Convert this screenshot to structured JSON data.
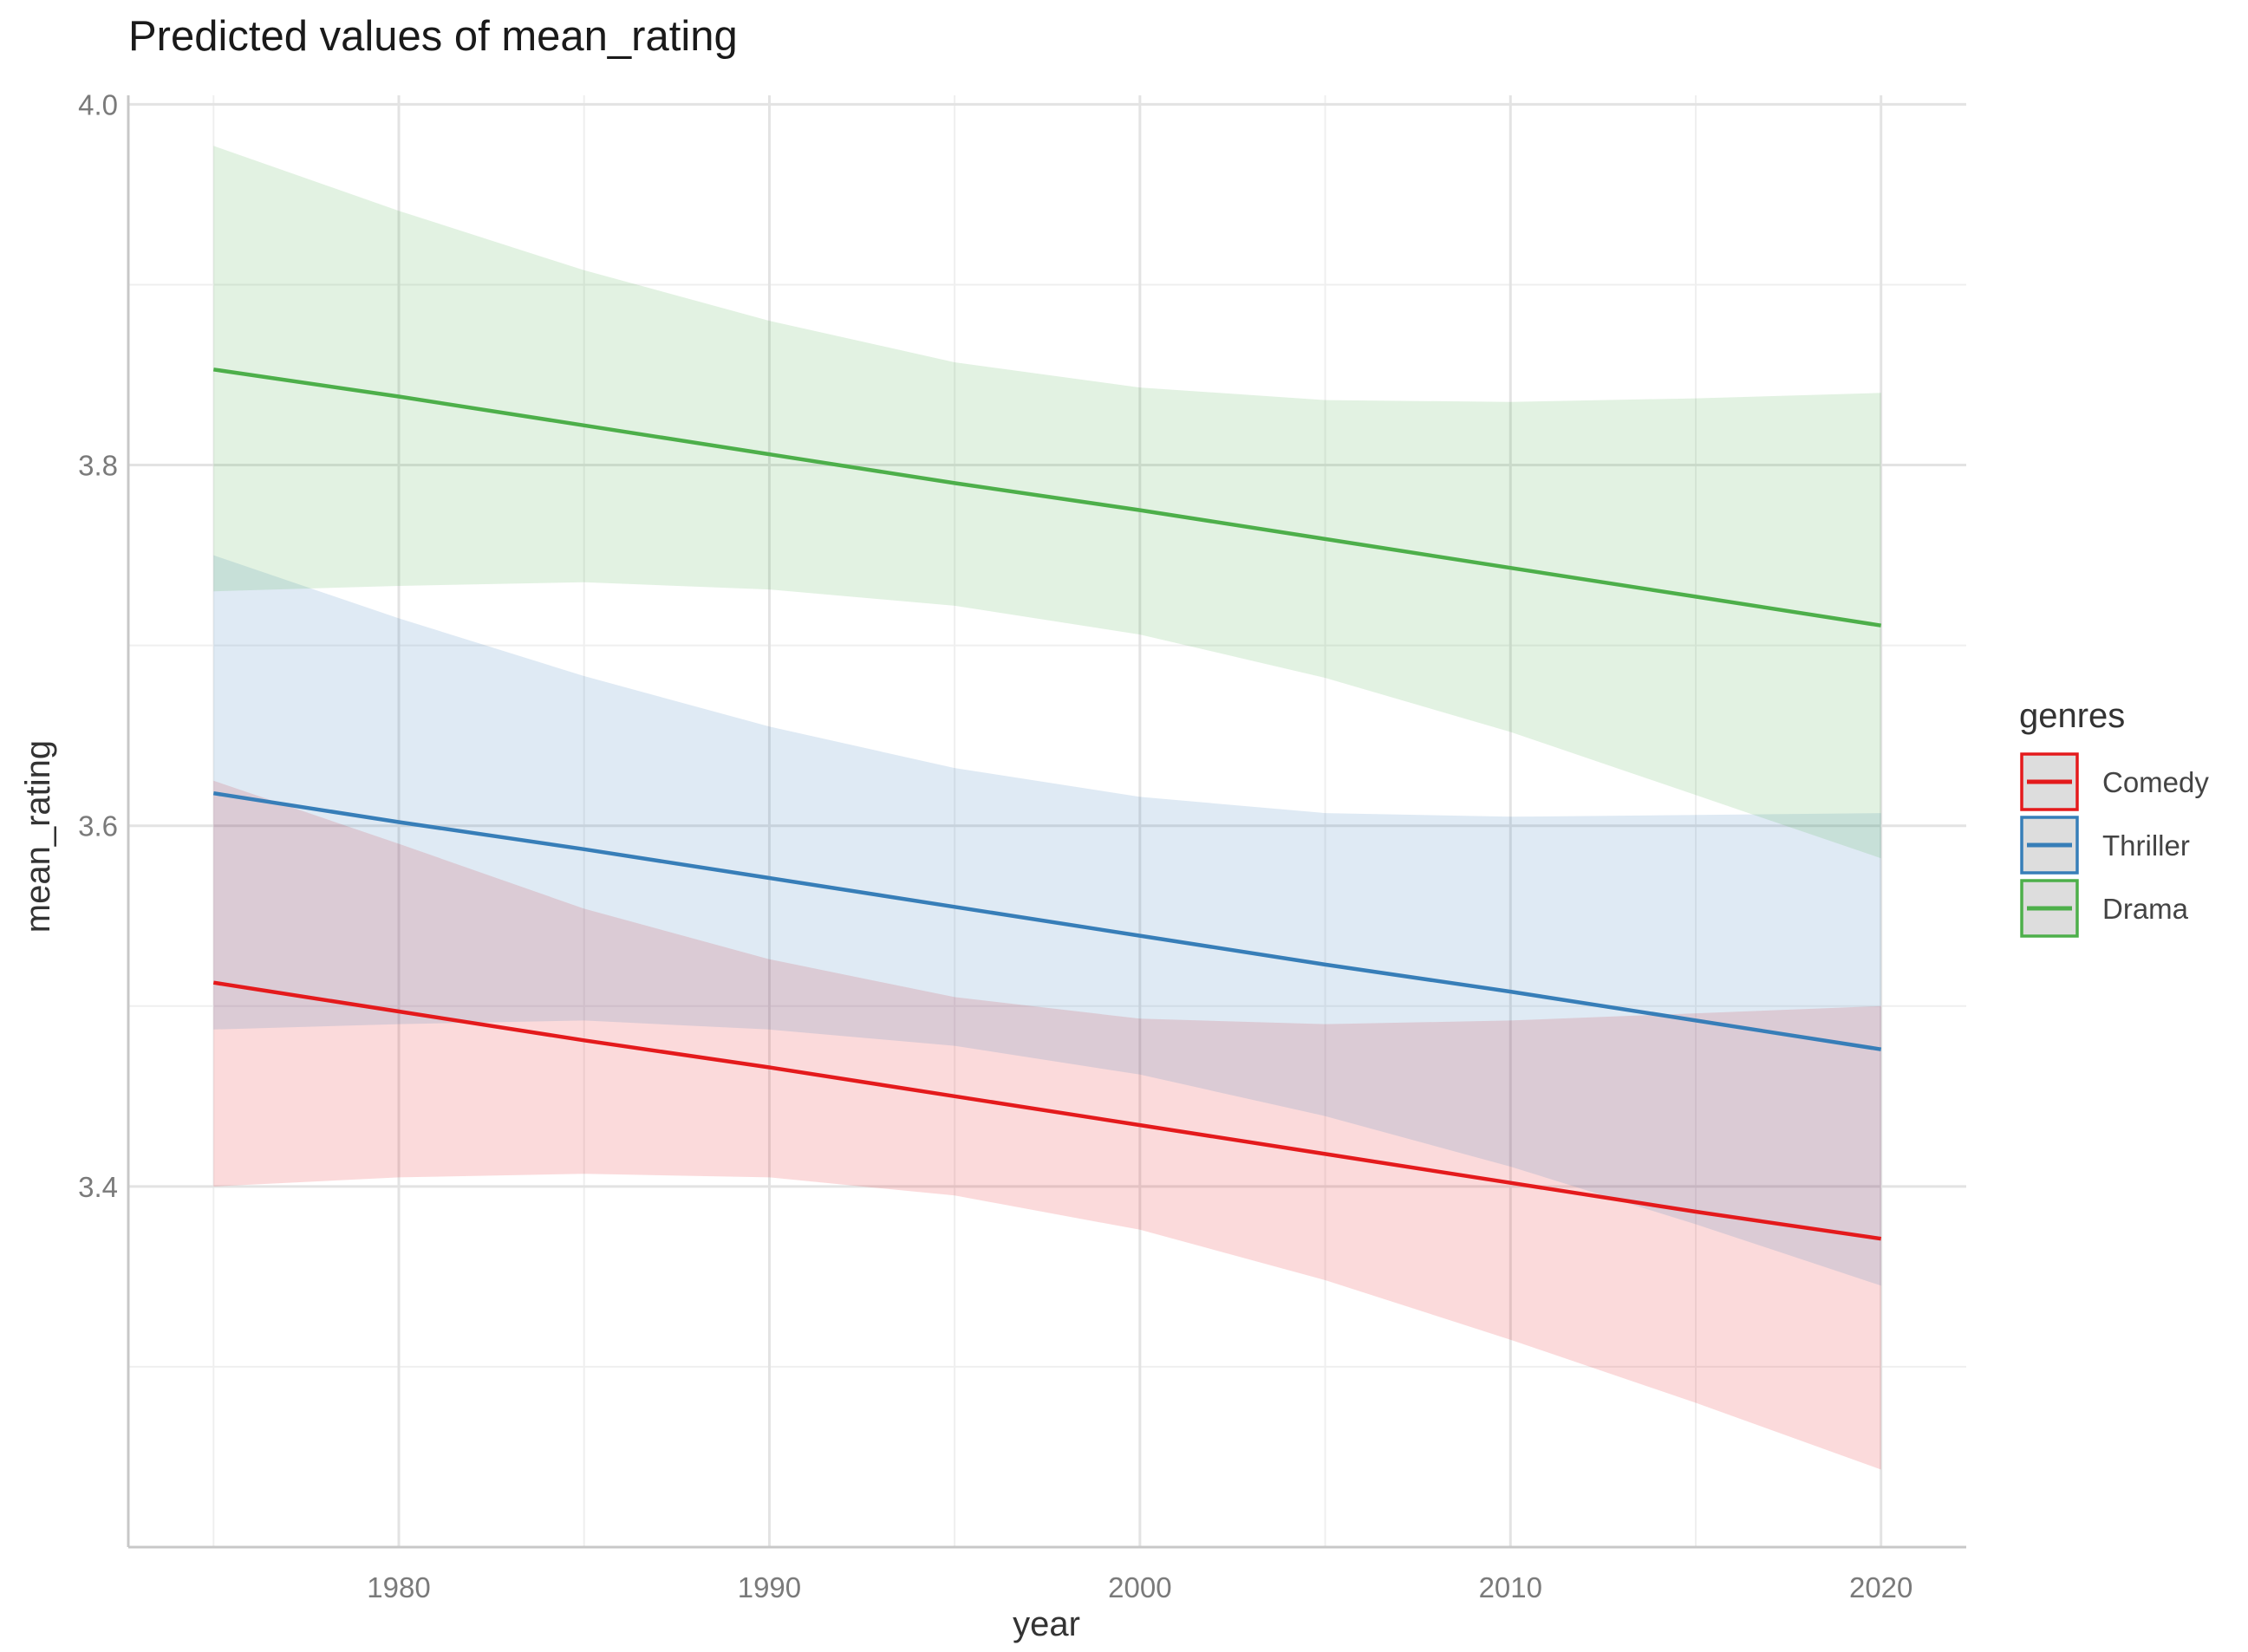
{
  "chart_data": {
    "type": "line",
    "title": "Predicted values of mean_rating",
    "xlabel": "year",
    "ylabel": "mean_rating",
    "xlim": [
      1972.7,
      2022.3
    ],
    "ylim": [
      3.2,
      4.005
    ],
    "x_ticks": [
      1980,
      1990,
      2000,
      2010,
      2020
    ],
    "x_tick_labels": [
      "1980",
      "1990",
      "2000",
      "2010",
      "2020"
    ],
    "x_minor_ticks": [
      1975,
      1985,
      1995,
      2005,
      2015
    ],
    "y_ticks": [
      3.4,
      3.6,
      3.8,
      4.0
    ],
    "y_tick_labels": [
      "3.4",
      "3.6",
      "3.8",
      "4.0"
    ],
    "y_minor_ticks": [
      3.3,
      3.5,
      3.7,
      3.9
    ],
    "grid": true,
    "legend": {
      "title": "genres",
      "position": "right"
    },
    "x": [
      1975,
      1980,
      1985,
      1990,
      1995,
      2000,
      2005,
      2010,
      2015,
      2020
    ],
    "series": [
      {
        "name": "Comedy",
        "color": "#E41A1C",
        "values": [
          3.513,
          3.497,
          3.481,
          3.466,
          3.45,
          3.434,
          3.418,
          3.402,
          3.386,
          3.371
        ],
        "lower": [
          3.4,
          3.405,
          3.407,
          3.405,
          3.395,
          3.376,
          3.348,
          3.315,
          3.28,
          3.243
        ],
        "upper": [
          3.625,
          3.59,
          3.554,
          3.526,
          3.505,
          3.493,
          3.49,
          3.492,
          3.496,
          3.5
        ]
      },
      {
        "name": "Thriller",
        "color": "#377EB8",
        "values": [
          3.618,
          3.602,
          3.587,
          3.571,
          3.555,
          3.539,
          3.523,
          3.508,
          3.492,
          3.476
        ],
        "lower": [
          3.487,
          3.49,
          3.492,
          3.487,
          3.478,
          3.462,
          3.439,
          3.411,
          3.379,
          3.345
        ],
        "upper": [
          3.75,
          3.715,
          3.683,
          3.655,
          3.632,
          3.616,
          3.607,
          3.605,
          3.606,
          3.607
        ]
      },
      {
        "name": "Drama",
        "color": "#4DAF4A",
        "values": [
          3.853,
          3.838,
          3.822,
          3.806,
          3.79,
          3.775,
          3.759,
          3.743,
          3.727,
          3.711
        ],
        "lower": [
          3.73,
          3.733,
          3.735,
          3.731,
          3.722,
          3.706,
          3.682,
          3.652,
          3.617,
          3.582
        ],
        "upper": [
          3.977,
          3.941,
          3.908,
          3.88,
          3.857,
          3.843,
          3.836,
          3.835,
          3.837,
          3.84
        ]
      }
    ]
  }
}
